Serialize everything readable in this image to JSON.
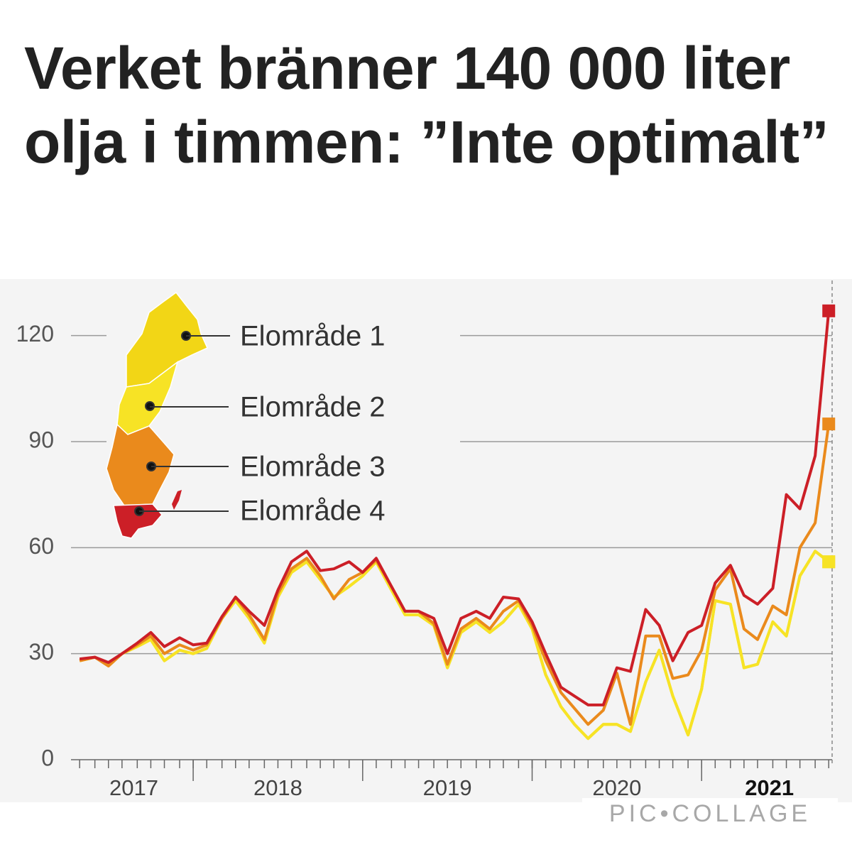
{
  "headline": "Verket bränner 140 000 liter olja i timmen: ”Inte optimalt”",
  "watermark": "PIC•COLLAGE",
  "chart_data": {
    "type": "line",
    "x": [
      2017.33,
      2017.42,
      2017.5,
      2017.58,
      2017.67,
      2017.75,
      2017.83,
      2017.92,
      2018.0,
      2018.08,
      2018.17,
      2018.25,
      2018.33,
      2018.42,
      2018.5,
      2018.58,
      2018.67,
      2018.75,
      2018.83,
      2018.92,
      2019.0,
      2019.08,
      2019.17,
      2019.25,
      2019.33,
      2019.42,
      2019.5,
      2019.58,
      2019.67,
      2019.75,
      2019.83,
      2019.92,
      2020.0,
      2020.08,
      2020.17,
      2020.25,
      2020.33,
      2020.42,
      2020.5,
      2020.58,
      2020.67,
      2020.75,
      2020.83,
      2020.92,
      2021.0,
      2021.08,
      2021.17,
      2021.25,
      2021.33,
      2021.42,
      2021.5,
      2021.58,
      2021.67,
      2021.75
    ],
    "series": [
      {
        "name": "Elområde 1",
        "color": "#f2d616",
        "values": [
          28,
          29,
          27,
          30,
          32,
          34,
          28,
          31,
          30,
          31.5,
          40,
          45,
          40,
          33,
          46,
          53,
          56,
          51,
          46,
          49,
          52,
          56,
          48,
          41,
          41,
          38,
          26,
          36,
          39,
          36,
          39,
          44,
          37,
          24,
          15,
          10,
          6,
          10,
          10,
          8,
          22,
          31,
          18,
          7,
          20,
          45,
          44,
          26,
          27,
          39,
          35,
          52,
          59,
          56
        ]
      },
      {
        "name": "Elområde 2",
        "color": "#f7e325",
        "values": [
          28,
          29,
          27,
          30,
          32,
          34,
          28,
          31,
          30,
          31.5,
          40,
          45,
          40,
          33,
          46,
          53,
          56,
          51,
          46,
          49,
          52,
          56,
          48,
          41,
          41,
          38,
          26,
          36,
          39,
          36,
          39,
          44,
          37,
          24,
          15,
          10,
          6,
          10,
          10,
          8,
          22,
          31,
          18,
          7,
          20,
          45,
          44,
          26,
          27,
          39,
          35,
          52,
          59,
          56
        ]
      },
      {
        "name": "Elområde 3",
        "color": "#ea8a1c",
        "values": [
          28,
          29,
          26.5,
          30,
          32.5,
          35,
          30,
          32.5,
          31,
          32.5,
          40,
          46,
          41,
          34,
          47,
          54,
          57,
          52,
          45.5,
          51,
          53,
          56.5,
          49,
          42,
          42,
          38.5,
          27,
          37,
          40,
          37,
          42,
          45,
          38,
          28,
          19,
          14.5,
          10,
          14,
          24.5,
          10,
          35,
          35,
          23,
          24,
          31,
          48,
          54,
          37,
          34,
          43.5,
          41,
          60,
          67,
          95
        ]
      },
      {
        "name": "Elområde 4",
        "color": "#cc1f27",
        "values": [
          28.5,
          29,
          27.5,
          30,
          33,
          36,
          32,
          34.5,
          32.5,
          33,
          40.5,
          46,
          42,
          38,
          48,
          56,
          59,
          53.5,
          54,
          56,
          53,
          57,
          49,
          42,
          42,
          40,
          30,
          40,
          42,
          40,
          46,
          45.5,
          39,
          30,
          20.5,
          18,
          15.5,
          15.5,
          26,
          25,
          42.5,
          38,
          28,
          36,
          38,
          50,
          55,
          46.5,
          44,
          48.5,
          75,
          71,
          86,
          127
        ]
      }
    ],
    "xlim": [
      2017.3,
      2021.77
    ],
    "xticks": [
      {
        "value": 2017.65,
        "label": "2017"
      },
      {
        "value": 2018.5,
        "label": "2018"
      },
      {
        "value": 2019.5,
        "label": "2019"
      },
      {
        "value": 2020.5,
        "label": "2020"
      },
      {
        "value": 2021.4,
        "label": "2021"
      }
    ],
    "ylim": [
      0,
      135
    ],
    "yticks": [
      0,
      30,
      60,
      90,
      120
    ],
    "grid": true
  }
}
